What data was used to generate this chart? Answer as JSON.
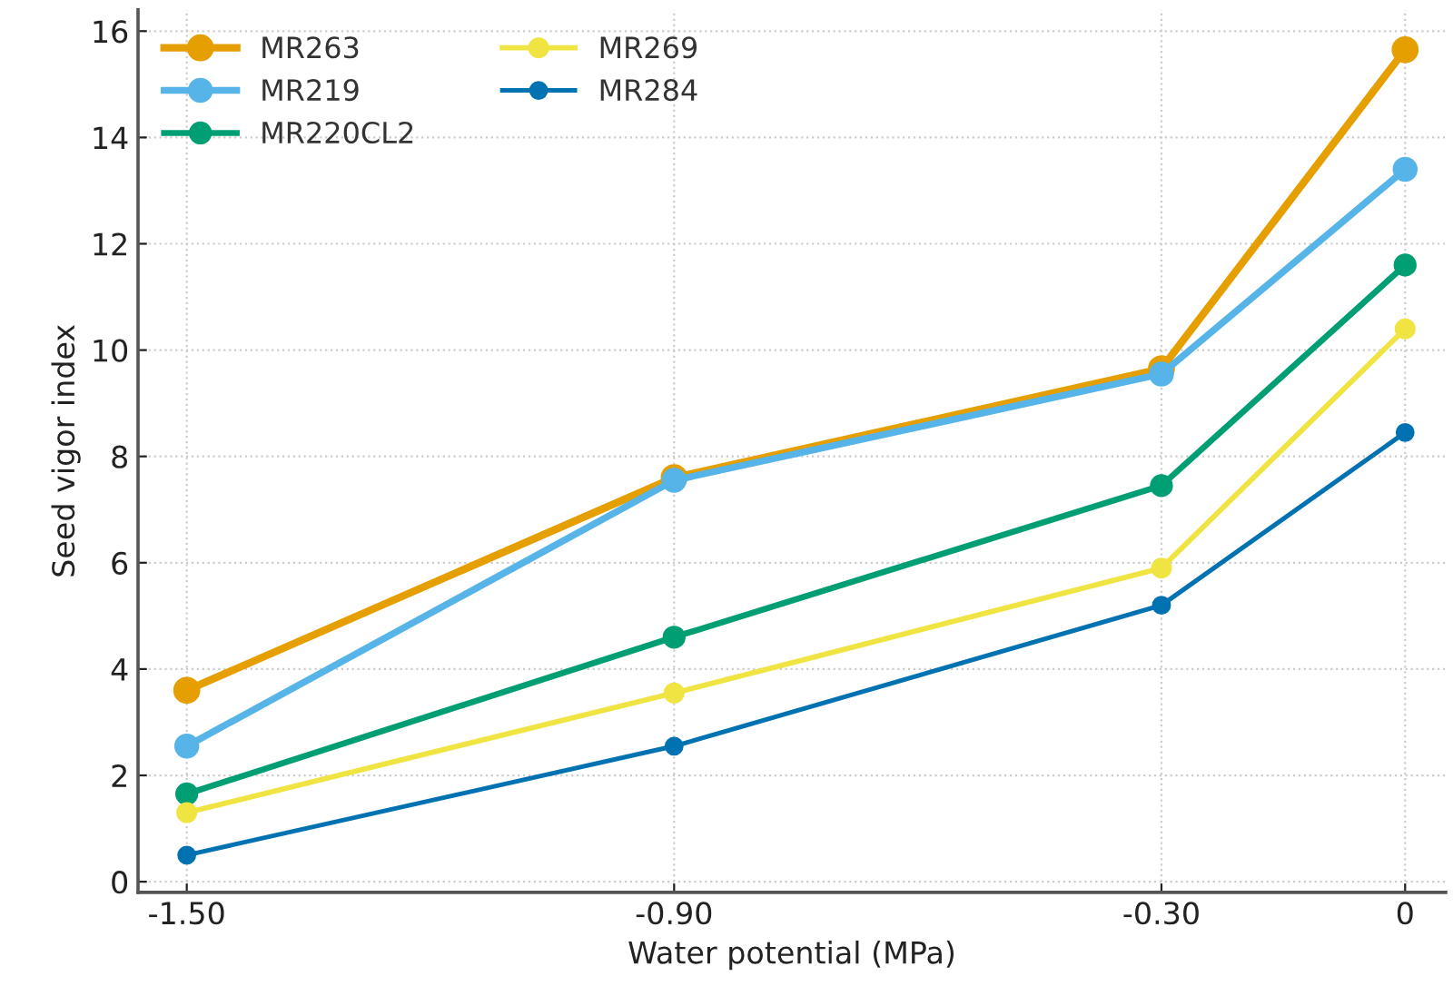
{
  "chart_data": {
    "type": "line",
    "xlabel": "Water potential (MPa)",
    "ylabel": "Seed vigor index",
    "x": [
      -1.5,
      -0.9,
      -0.3,
      0
    ],
    "series": [
      {
        "name": "MR263",
        "color": "#e69f00",
        "values": [
          3.6,
          7.6,
          9.65,
          15.65
        ]
      },
      {
        "name": "MR219",
        "color": "#56b4e9",
        "values": [
          2.55,
          7.55,
          9.55,
          13.4
        ]
      },
      {
        "name": "MR220CL2",
        "color": "#009e73",
        "values": [
          1.65,
          4.6,
          7.45,
          11.6
        ]
      },
      {
        "name": "MR269",
        "color": "#f0e442",
        "values": [
          1.3,
          3.55,
          5.9,
          10.4
        ]
      },
      {
        "name": "MR284",
        "color": "#0072b2",
        "values": [
          0.5,
          2.55,
          5.2,
          8.45
        ]
      }
    ],
    "xlim": [
      -1.56,
      0.05
    ],
    "ylim": [
      -0.2,
      16.4
    ],
    "xticks": [
      {
        "value": -1.5,
        "label": "-1.50"
      },
      {
        "value": -0.9,
        "label": "-0.90"
      },
      {
        "value": -0.3,
        "label": "-0.30"
      },
      0
    ],
    "yticks": [
      0,
      2,
      4,
      6,
      8,
      10,
      12,
      14,
      16
    ],
    "grid": true,
    "legend": "top left",
    "marker": "circle",
    "line_style": "solid"
  }
}
